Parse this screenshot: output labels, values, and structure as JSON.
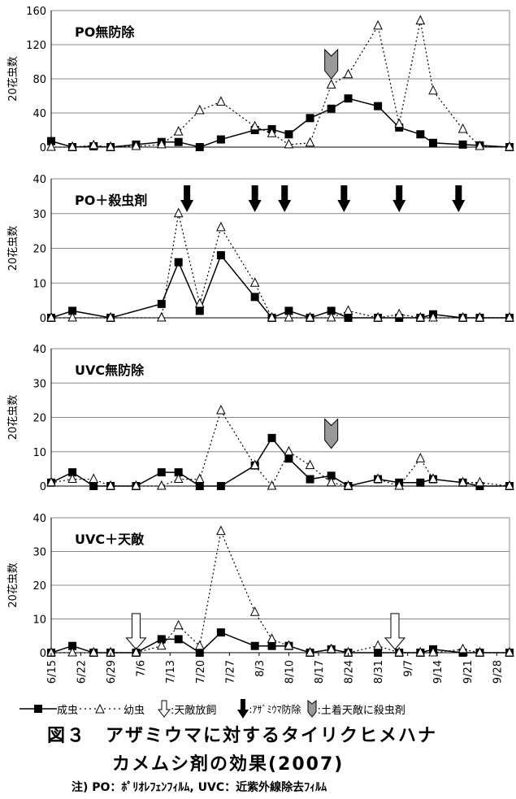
{
  "chart_data": [
    {
      "type": "line",
      "title": "PO無防除",
      "ylabel": "20花虫数",
      "ylim": [
        0,
        160
      ],
      "yticks": [
        0,
        40,
        80,
        120,
        160
      ],
      "x": [
        "6/15",
        "6/20",
        "6/25",
        "6/29",
        "7/5",
        "7/11",
        "7/15",
        "7/20",
        "7/25",
        "8/2",
        "8/6",
        "8/10",
        "8/15",
        "8/20",
        "8/24",
        "8/31",
        "9/5",
        "9/10",
        "9/13",
        "9/20",
        "9/24",
        "10/1"
      ],
      "series": [
        {
          "name": "成虫",
          "values": [
            7,
            0,
            1,
            0,
            3,
            6,
            6,
            0,
            9,
            20,
            21,
            15,
            34,
            45,
            57,
            48,
            23,
            15,
            5,
            3,
            2,
            0
          ]
        },
        {
          "name": "幼虫",
          "values": [
            0,
            0,
            2,
            0,
            1,
            3,
            18,
            43,
            53,
            24,
            16,
            3,
            5,
            73,
            85,
            142,
            27,
            148,
            66,
            21,
            1,
            0
          ]
        }
      ],
      "annotations": [
        {
          "type": "gray-chevron",
          "date": "8/20",
          "meaning": "土着天敵に殺虫剤"
        }
      ]
    },
    {
      "type": "line",
      "title": "PO＋殺虫剤",
      "ylabel": "20花虫数",
      "ylim": [
        0,
        40
      ],
      "yticks": [
        0,
        10,
        20,
        30,
        40
      ],
      "x": [
        "6/15",
        "6/20",
        "6/25",
        "6/29",
        "7/5",
        "7/11",
        "7/15",
        "7/20",
        "7/25",
        "8/2",
        "8/6",
        "8/10",
        "8/15",
        "8/20",
        "8/24",
        "8/31",
        "9/5",
        "9/10",
        "9/13",
        "9/20",
        "9/24",
        "10/1"
      ],
      "series": [
        {
          "name": "成虫",
          "values": [
            0,
            2,
            null,
            0,
            null,
            4,
            16,
            2,
            18,
            6,
            0,
            2,
            0,
            2,
            0,
            0,
            0,
            0,
            1,
            0,
            0,
            0
          ]
        },
        {
          "name": "幼虫",
          "values": [
            0,
            0,
            null,
            0,
            null,
            0,
            30,
            4,
            26,
            10,
            0,
            0,
            0,
            0,
            2,
            0,
            1,
            0,
            0,
            0,
            0,
            0
          ]
        }
      ],
      "annotations": [
        {
          "type": "black-arrow",
          "date": "7/17"
        },
        {
          "type": "black-arrow",
          "date": "8/2"
        },
        {
          "type": "black-arrow",
          "date": "8/9"
        },
        {
          "type": "black-arrow",
          "date": "8/23"
        },
        {
          "type": "black-arrow",
          "date": "9/5"
        },
        {
          "type": "black-arrow",
          "date": "9/19"
        }
      ]
    },
    {
      "type": "line",
      "title": "UVC無防除",
      "ylabel": "20花虫数",
      "ylim": [
        0,
        40
      ],
      "yticks": [
        0,
        10,
        20,
        30,
        40
      ],
      "x": [
        "6/15",
        "6/20",
        "6/25",
        "6/29",
        "7/5",
        "7/11",
        "7/15",
        "7/20",
        "7/25",
        "8/2",
        "8/6",
        "8/10",
        "8/15",
        "8/20",
        "8/24",
        "8/31",
        "9/5",
        "9/10",
        "9/13",
        "9/20",
        "9/24",
        "10/1"
      ],
      "series": [
        {
          "name": "成虫",
          "values": [
            1,
            4,
            0,
            0,
            0,
            4,
            4,
            0,
            0,
            6,
            14,
            8,
            2,
            3,
            0,
            2,
            1,
            1,
            2,
            1,
            0,
            0
          ]
        },
        {
          "name": "幼虫",
          "values": [
            1,
            2,
            2,
            0,
            0,
            0,
            2,
            2,
            22,
            6,
            0,
            10,
            6,
            1,
            0,
            2,
            0,
            8,
            2,
            1,
            1,
            0
          ]
        }
      ],
      "annotations": [
        {
          "type": "gray-chevron",
          "date": "8/20"
        }
      ]
    },
    {
      "type": "line",
      "title": "UVC＋天敵",
      "ylabel": "20花虫数",
      "ylim": [
        0,
        40
      ],
      "yticks": [
        0,
        10,
        20,
        30,
        40
      ],
      "x": [
        "6/15",
        "6/20",
        "6/25",
        "6/29",
        "7/5",
        "7/11",
        "7/15",
        "7/20",
        "7/25",
        "8/2",
        "8/6",
        "8/10",
        "8/15",
        "8/20",
        "8/24",
        "8/31",
        "9/5",
        "9/10",
        "9/13",
        "9/20",
        "9/24",
        "10/1"
      ],
      "series": [
        {
          "name": "成虫",
          "values": [
            0,
            2,
            0,
            0,
            0,
            4,
            4,
            0,
            6,
            2,
            2,
            2,
            0,
            1,
            0,
            0,
            0,
            0,
            1,
            0,
            0,
            0
          ]
        },
        {
          "name": "幼虫",
          "values": [
            0,
            0,
            0,
            0,
            0,
            2,
            8,
            2,
            36,
            12,
            4,
            2,
            0,
            1,
            0,
            2,
            0,
            0,
            0,
            1,
            0,
            0
          ]
        }
      ],
      "annotations": [
        {
          "type": "white-arrow",
          "date": "7/5"
        },
        {
          "type": "white-arrow",
          "date": "9/4"
        }
      ]
    }
  ],
  "xtick_labels": [
    "6/15",
    "6/22",
    "6/29",
    "7/6",
    "7/13",
    "7/20",
    "7/27",
    "8/3",
    "8/10",
    "8/17",
    "8/24",
    "8/31",
    "9/7",
    "9/14",
    "9/21",
    "9/28"
  ],
  "legend": {
    "adult": "成虫",
    "nymph": "幼虫",
    "release": ":天敵放飼",
    "thrips_control": ":ｱｻﾞﾐｳﾏ防除",
    "insecticide": ":土着天敵に殺虫剤"
  },
  "figure": {
    "title_line1": "図３　アザミウマに対するタイリクヒメハナ",
    "title_line2": "カメムシ剤の効果(2007)",
    "note": "注) PO：ﾎﾟﾘｵﾚﾌｪﾝﾌｨﾙﾑ, UVC：近紫外線除去ﾌｨﾙﾑ"
  }
}
